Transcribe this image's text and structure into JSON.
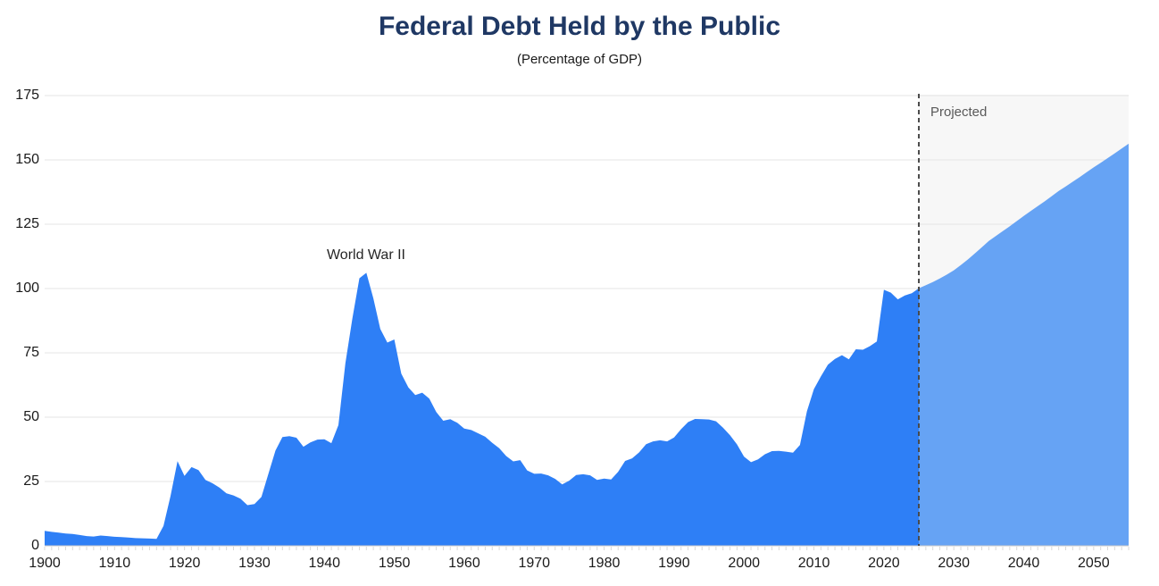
{
  "chart_data": {
    "type": "area",
    "title": "Federal Debt Held by the Public",
    "subtitle": "(Percentage of GDP)",
    "xlabel": "",
    "ylabel": "",
    "xlim": [
      1900,
      2055
    ],
    "ylim": [
      0,
      175
    ],
    "x_ticks": [
      1900,
      1910,
      1920,
      1930,
      1940,
      1950,
      1960,
      1970,
      1980,
      1990,
      2000,
      2010,
      2020,
      2030,
      2040,
      2050
    ],
    "y_ticks": [
      0,
      25,
      50,
      75,
      100,
      125,
      150,
      175
    ],
    "grid": "horizontal",
    "legend": "none",
    "projection_divider_year": 2025,
    "annotations": [
      {
        "text": "World War II",
        "x": 1946,
        "y": 110
      },
      {
        "text": "Projected",
        "x": 2026.5,
        "y": 168
      }
    ],
    "series": [
      {
        "name": "historical",
        "color": "#2E7FF6",
        "points": [
          [
            1900,
            5.8
          ],
          [
            1901,
            5.4
          ],
          [
            1902,
            5.1
          ],
          [
            1903,
            4.8
          ],
          [
            1904,
            4.6
          ],
          [
            1905,
            4.2
          ],
          [
            1906,
            3.8
          ],
          [
            1907,
            3.6
          ],
          [
            1908,
            4.0
          ],
          [
            1909,
            3.8
          ],
          [
            1910,
            3.5
          ],
          [
            1911,
            3.4
          ],
          [
            1912,
            3.2
          ],
          [
            1913,
            3.0
          ],
          [
            1914,
            2.9
          ],
          [
            1915,
            2.8
          ],
          [
            1916,
            2.7
          ],
          [
            1917,
            7.7
          ],
          [
            1918,
            19.4
          ],
          [
            1919,
            32.9
          ],
          [
            1920,
            27.2
          ],
          [
            1921,
            30.6
          ],
          [
            1922,
            29.4
          ],
          [
            1923,
            25.6
          ],
          [
            1924,
            24.3
          ],
          [
            1925,
            22.6
          ],
          [
            1926,
            20.4
          ],
          [
            1927,
            19.6
          ],
          [
            1928,
            18.3
          ],
          [
            1929,
            15.8
          ],
          [
            1930,
            16.2
          ],
          [
            1931,
            19.0
          ],
          [
            1932,
            28.0
          ],
          [
            1933,
            37.0
          ],
          [
            1934,
            42.3
          ],
          [
            1935,
            42.6
          ],
          [
            1936,
            42.0
          ],
          [
            1937,
            38.5
          ],
          [
            1938,
            40.2
          ],
          [
            1939,
            41.3
          ],
          [
            1940,
            41.4
          ],
          [
            1941,
            39.9
          ],
          [
            1942,
            46.9
          ],
          [
            1943,
            70.9
          ],
          [
            1944,
            88.3
          ],
          [
            1945,
            104.0
          ],
          [
            1946,
            106.1
          ],
          [
            1947,
            96.2
          ],
          [
            1948,
            84.3
          ],
          [
            1949,
            79.0
          ],
          [
            1950,
            80.2
          ],
          [
            1951,
            66.9
          ],
          [
            1952,
            61.6
          ],
          [
            1953,
            58.6
          ],
          [
            1954,
            59.5
          ],
          [
            1955,
            57.2
          ],
          [
            1956,
            52.0
          ],
          [
            1957,
            48.6
          ],
          [
            1958,
            49.2
          ],
          [
            1959,
            47.8
          ],
          [
            1960,
            45.6
          ],
          [
            1961,
            45.0
          ],
          [
            1962,
            43.7
          ],
          [
            1963,
            42.4
          ],
          [
            1964,
            40.0
          ],
          [
            1965,
            37.9
          ],
          [
            1966,
            34.9
          ],
          [
            1967,
            32.8
          ],
          [
            1968,
            33.3
          ],
          [
            1969,
            29.3
          ],
          [
            1970,
            28.0
          ],
          [
            1971,
            28.1
          ],
          [
            1972,
            27.4
          ],
          [
            1973,
            26.0
          ],
          [
            1974,
            23.9
          ],
          [
            1975,
            25.3
          ],
          [
            1976,
            27.5
          ],
          [
            1977,
            27.8
          ],
          [
            1978,
            27.4
          ],
          [
            1979,
            25.6
          ],
          [
            1980,
            26.1
          ],
          [
            1981,
            25.8
          ],
          [
            1982,
            28.7
          ],
          [
            1983,
            33.0
          ],
          [
            1984,
            34.0
          ],
          [
            1985,
            36.3
          ],
          [
            1986,
            39.5
          ],
          [
            1987,
            40.6
          ],
          [
            1988,
            41.0
          ],
          [
            1989,
            40.6
          ],
          [
            1990,
            42.1
          ],
          [
            1991,
            45.3
          ],
          [
            1992,
            48.1
          ],
          [
            1993,
            49.3
          ],
          [
            1994,
            49.2
          ],
          [
            1995,
            49.1
          ],
          [
            1996,
            48.4
          ],
          [
            1997,
            45.9
          ],
          [
            1998,
            43.0
          ],
          [
            1999,
            39.4
          ],
          [
            2000,
            34.7
          ],
          [
            2001,
            32.5
          ],
          [
            2002,
            33.6
          ],
          [
            2003,
            35.6
          ],
          [
            2004,
            36.8
          ],
          [
            2005,
            36.9
          ],
          [
            2006,
            36.6
          ],
          [
            2007,
            36.2
          ],
          [
            2008,
            39.2
          ],
          [
            2009,
            52.3
          ],
          [
            2010,
            60.9
          ],
          [
            2011,
            65.9
          ],
          [
            2012,
            70.4
          ],
          [
            2013,
            72.6
          ],
          [
            2014,
            74.1
          ],
          [
            2015,
            72.5
          ],
          [
            2016,
            76.4
          ],
          [
            2017,
            76.2
          ],
          [
            2018,
            77.6
          ],
          [
            2019,
            79.4
          ],
          [
            2020,
            99.5
          ],
          [
            2021,
            98.4
          ],
          [
            2022,
            95.8
          ],
          [
            2023,
            97.3
          ],
          [
            2024,
            98.2
          ],
          [
            2025,
            100.1
          ]
        ]
      },
      {
        "name": "projected",
        "color": "#66A3F4",
        "points": [
          [
            2025,
            100.1
          ],
          [
            2026,
            101.3
          ],
          [
            2027,
            102.5
          ],
          [
            2028,
            103.9
          ],
          [
            2029,
            105.4
          ],
          [
            2030,
            107.1
          ],
          [
            2031,
            109.1
          ],
          [
            2032,
            111.3
          ],
          [
            2033,
            113.6
          ],
          [
            2034,
            116.0
          ],
          [
            2035,
            118.5
          ],
          [
            2036,
            120.4
          ],
          [
            2037,
            122.3
          ],
          [
            2038,
            124.2
          ],
          [
            2039,
            126.2
          ],
          [
            2040,
            128.2
          ],
          [
            2041,
            130.1
          ],
          [
            2042,
            132.0
          ],
          [
            2043,
            133.9
          ],
          [
            2044,
            135.9
          ],
          [
            2045,
            137.9
          ],
          [
            2046,
            139.7
          ],
          [
            2047,
            141.5
          ],
          [
            2048,
            143.3
          ],
          [
            2049,
            145.2
          ],
          [
            2050,
            147.1
          ],
          [
            2051,
            148.9
          ],
          [
            2052,
            150.7
          ],
          [
            2053,
            152.5
          ],
          [
            2054,
            154.4
          ],
          [
            2055,
            156.3
          ]
        ]
      }
    ]
  },
  "colors": {
    "title": "#1F3864",
    "axis_text": "#1A1A1A",
    "annotation_text": "#262626",
    "projected_label": "#595959",
    "historical_fill": "#2E7FF6",
    "projected_fill": "#66A3F4",
    "projected_background": "#F7F7F7",
    "gridline": "#E4E4E4",
    "baseline": "#C9C9C9",
    "divider_line": "#4A4A4A",
    "tick": "#D9D9D9"
  }
}
